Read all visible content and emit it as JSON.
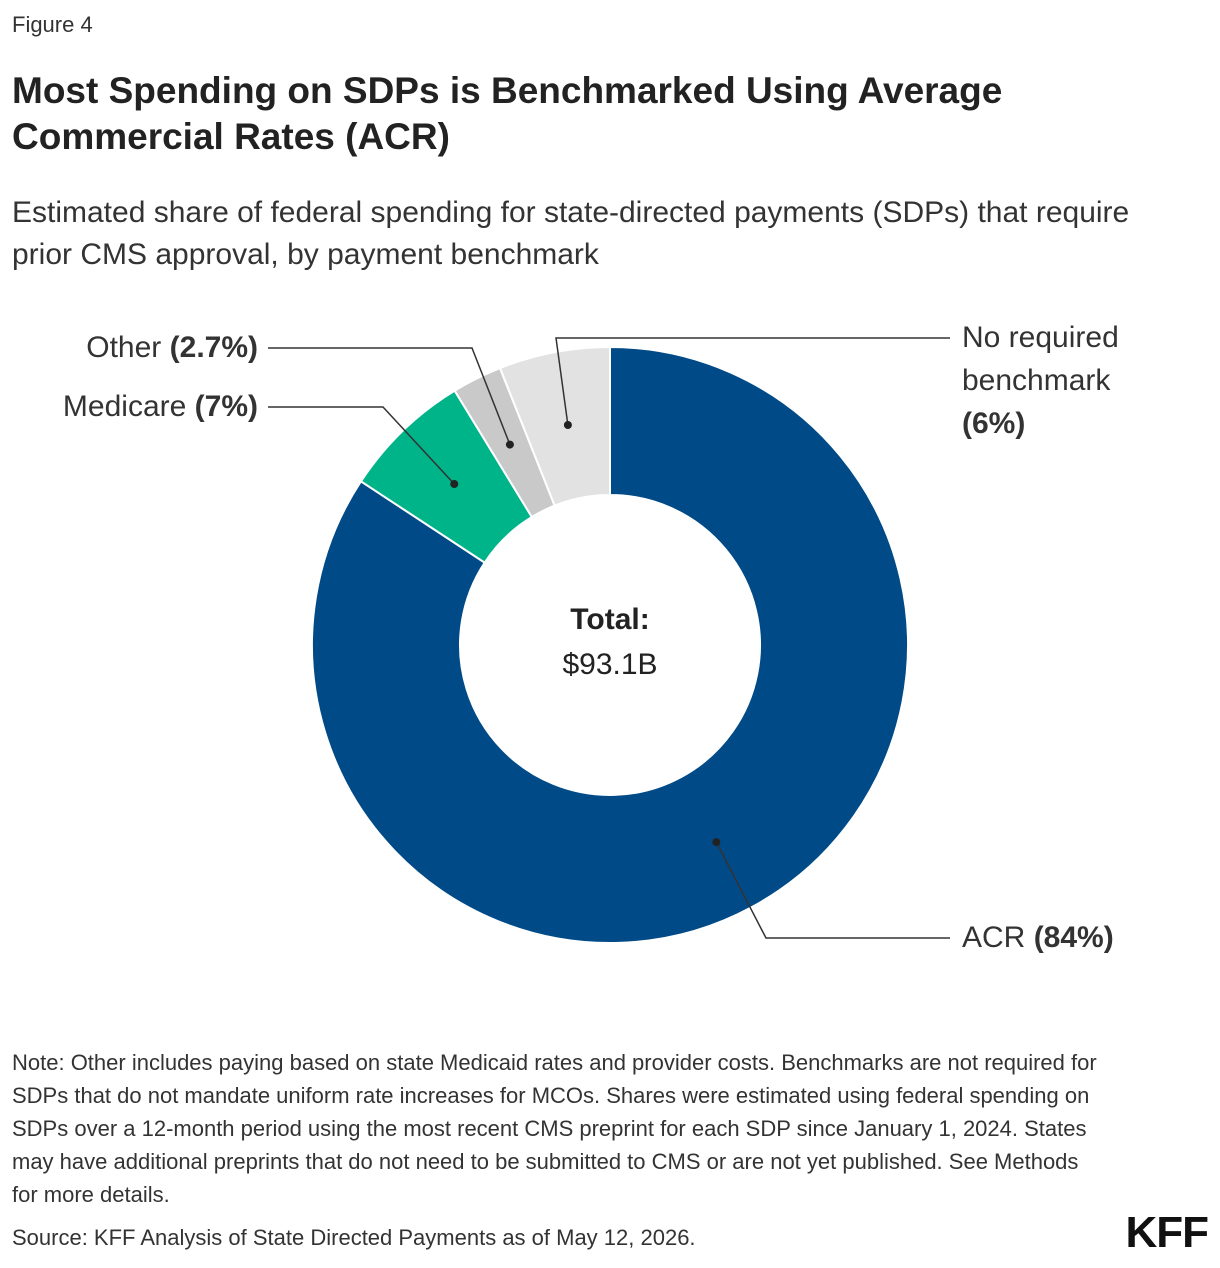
{
  "figure_label": "Figure 4",
  "chart_data": {
    "type": "donut",
    "title": "Most Spending on SDPs is Benchmarked Using Average Commercial Rates (ACR)",
    "subtitle": "Estimated share of federal spending for state-directed payments (SDPs) that require prior CMS approval, by payment benchmark",
    "center_label": "Total:",
    "center_value": "$93.1B",
    "categories": [
      "ACR",
      "Medicare",
      "Other",
      "No required benchmark"
    ],
    "values": [
      84,
      7,
      2.7,
      6
    ],
    "value_labels": [
      "(84%)",
      "(7%)",
      "(2.7%)",
      "(6%)"
    ],
    "colors": [
      "#004a87",
      "#00b48a",
      "#c9c9c9",
      "#e2e2e2"
    ]
  },
  "note": "Note: Other includes paying based on state Medicaid rates and provider costs. Benchmarks are not required for SDPs that do not mandate uniform rate increases for MCOs. Shares were estimated using federal spending on SDPs over a 12-month period using the most recent CMS preprint for each SDP since January 1, 2024. States may have additional preprints that do not need to be submitted to CMS or are not yet published. See Methods for more details.",
  "source": "Source: KFF Analysis of State Directed Payments as of May 12, 2026.",
  "logo": "KFF"
}
